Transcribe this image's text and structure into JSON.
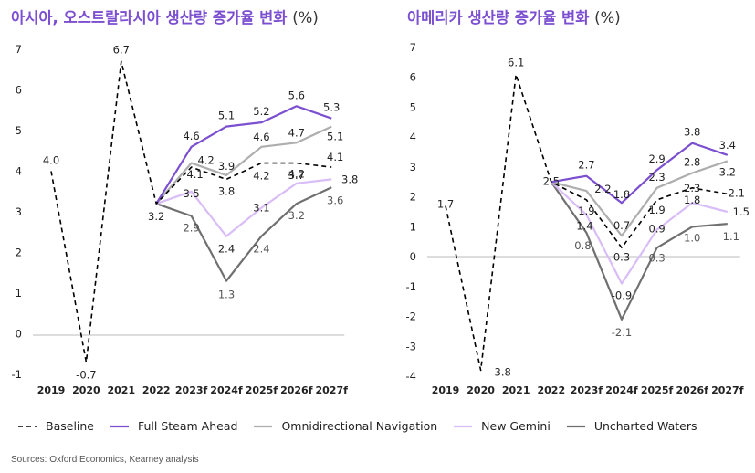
{
  "colors": {
    "Baseline": "#000000",
    "Full Steam Ahead": "#7B4FD0",
    "Omnidirectional Navigation": "#AEAEAE",
    "New Gemini": "#D9BDF7",
    "Uncharted Waters": "#707070"
  },
  "legend": [
    {
      "name": "Baseline",
      "style": "dashed"
    },
    {
      "name": "Full Steam Ahead",
      "style": "solid"
    },
    {
      "name": "Omnidirectional Navigation",
      "style": "solid"
    },
    {
      "name": "New Gemini",
      "style": "solid"
    },
    {
      "name": "Uncharted Waters",
      "style": "solid"
    }
  ],
  "source": "Sources: Oxford Economics, Kearney analysis",
  "chart_data": [
    {
      "type": "line",
      "title": "아시아, 오스트랄라시아 생산량 증가율 변화",
      "title_unit": "(%)",
      "categories": [
        "2019",
        "2020",
        "2021",
        "2022",
        "2023f",
        "2024f",
        "2025f",
        "2026f",
        "2027f"
      ],
      "ylim": [
        -1,
        7
      ],
      "yticks": [
        "-1",
        "0",
        "1",
        "2",
        "3",
        "4",
        "5",
        "6",
        "7"
      ],
      "series": [
        {
          "name": "Baseline",
          "values": [
            4.0,
            -0.7,
            6.7,
            3.2,
            4.1,
            3.8,
            4.2,
            4.2,
            4.1
          ]
        },
        {
          "name": "Full Steam Ahead",
          "values": [
            null,
            null,
            null,
            3.2,
            4.6,
            5.1,
            5.2,
            5.6,
            5.3
          ]
        },
        {
          "name": "Omnidirectional Navigation",
          "values": [
            null,
            null,
            null,
            3.2,
            4.2,
            3.9,
            4.6,
            4.7,
            5.1
          ]
        },
        {
          "name": "New Gemini",
          "values": [
            null,
            null,
            null,
            3.2,
            3.5,
            2.4,
            3.1,
            3.7,
            3.8
          ]
        },
        {
          "name": "Uncharted Waters",
          "values": [
            null,
            null,
            null,
            3.2,
            2.9,
            1.3,
            2.4,
            3.2,
            3.6
          ]
        }
      ],
      "data_labels": [
        {
          "text": "4.0",
          "cat": 0,
          "v": 4.0,
          "dx": 0,
          "dy": -12,
          "color": "#222"
        },
        {
          "text": "-0.7",
          "cat": 1,
          "v": -0.7,
          "dx": 0,
          "dy": 14,
          "color": "#222"
        },
        {
          "text": "6.7",
          "cat": 2,
          "v": 6.7,
          "dx": 0,
          "dy": -13,
          "color": "#222"
        },
        {
          "text": "3.2",
          "cat": 3,
          "v": 3.2,
          "dx": 0,
          "dy": 14,
          "color": "#222"
        },
        {
          "text": "4.6",
          "cat": 4,
          "v": 4.6,
          "dx": 0,
          "dy": -12,
          "color": "#222"
        },
        {
          "text": "4.2",
          "cat": 4,
          "v": 4.2,
          "dx": 16,
          "dy": -3,
          "color": "#222"
        },
        {
          "text": "4.1",
          "cat": 4,
          "v": 4.1,
          "dx": 4,
          "dy": 8,
          "color": "#222"
        },
        {
          "text": "3.5",
          "cat": 4,
          "v": 3.5,
          "dx": 0,
          "dy": 2,
          "color": "#222"
        },
        {
          "text": "2.9",
          "cat": 4,
          "v": 2.9,
          "dx": 0,
          "dy": 13,
          "color": "#555"
        },
        {
          "text": "5.1",
          "cat": 5,
          "v": 5.1,
          "dx": 0,
          "dy": -12,
          "color": "#222"
        },
        {
          "text": "3.9",
          "cat": 5,
          "v": 3.9,
          "dx": 0,
          "dy": -10,
          "color": "#222"
        },
        {
          "text": "3.8",
          "cat": 5,
          "v": 3.8,
          "dx": 0,
          "dy": 13,
          "color": "#222"
        },
        {
          "text": "2.4",
          "cat": 5,
          "v": 2.4,
          "dx": 0,
          "dy": 14,
          "color": "#222"
        },
        {
          "text": "1.3",
          "cat": 5,
          "v": 1.3,
          "dx": 0,
          "dy": 15,
          "color": "#555"
        },
        {
          "text": "5.2",
          "cat": 6,
          "v": 5.2,
          "dx": 0,
          "dy": -12,
          "color": "#222"
        },
        {
          "text": "4.6",
          "cat": 6,
          "v": 4.6,
          "dx": 0,
          "dy": -11,
          "color": "#222"
        },
        {
          "text": "4.2",
          "cat": 6,
          "v": 4.2,
          "dx": 0,
          "dy": 14,
          "color": "#222"
        },
        {
          "text": "3.1",
          "cat": 6,
          "v": 3.1,
          "dx": 0,
          "dy": 0,
          "color": "#222"
        },
        {
          "text": "2.4",
          "cat": 6,
          "v": 2.4,
          "dx": 0,
          "dy": 14,
          "color": "#555"
        },
        {
          "text": "5.6",
          "cat": 7,
          "v": 5.6,
          "dx": 0,
          "dy": -12,
          "color": "#222"
        },
        {
          "text": "4.7",
          "cat": 7,
          "v": 4.7,
          "dx": 0,
          "dy": -11,
          "color": "#222"
        },
        {
          "text": "4.2",
          "cat": 7,
          "v": 4.2,
          "dx": 0,
          "dy": 12,
          "color": "#222"
        },
        {
          "text": "3.7",
          "cat": 7,
          "v": 3.7,
          "dx": 0,
          "dy": -9,
          "color": "#222"
        },
        {
          "text": "3.2",
          "cat": 7,
          "v": 3.2,
          "dx": 0,
          "dy": 13,
          "color": "#555"
        },
        {
          "text": "5.3",
          "cat": 8,
          "v": 5.3,
          "dx": 0,
          "dy": -12,
          "color": "#222"
        },
        {
          "text": "5.1",
          "cat": 8,
          "v": 5.1,
          "dx": 4,
          "dy": 11,
          "color": "#222"
        },
        {
          "text": "4.1",
          "cat": 8,
          "v": 4.1,
          "dx": 4,
          "dy": -11,
          "color": "#222"
        },
        {
          "text": "3.8",
          "cat": 8,
          "v": 3.8,
          "dx": 20,
          "dy": 0,
          "color": "#222"
        },
        {
          "text": "3.6",
          "cat": 8,
          "v": 3.6,
          "dx": 4,
          "dy": 14,
          "color": "#555"
        }
      ]
    },
    {
      "type": "line",
      "title": "아메리카 생산량 증가율 변화",
      "title_unit": "(%)",
      "categories": [
        "2019",
        "2020",
        "2021",
        "2022",
        "2023f",
        "2024f",
        "2025f",
        "2026f",
        "2027f"
      ],
      "ylim": [
        -4,
        7
      ],
      "yticks": [
        "-4",
        "-3",
        "-2",
        "-1",
        "0",
        "1",
        "2",
        "3",
        "4",
        "5",
        "6",
        "7"
      ],
      "series": [
        {
          "name": "Baseline",
          "values": [
            1.7,
            -3.8,
            6.1,
            2.5,
            1.9,
            0.3,
            1.9,
            2.3,
            2.1
          ]
        },
        {
          "name": "Full Steam Ahead",
          "values": [
            null,
            null,
            null,
            2.5,
            2.7,
            1.8,
            2.9,
            3.8,
            3.4
          ]
        },
        {
          "name": "Omnidirectional Navigation",
          "values": [
            null,
            null,
            null,
            2.5,
            2.2,
            0.7,
            2.3,
            2.8,
            3.2
          ]
        },
        {
          "name": "New Gemini",
          "values": [
            null,
            null,
            null,
            2.5,
            1.4,
            -0.9,
            0.9,
            1.8,
            1.5
          ]
        },
        {
          "name": "Uncharted Waters",
          "values": [
            null,
            null,
            null,
            2.5,
            0.8,
            -2.1,
            0.3,
            1.0,
            1.1
          ]
        }
      ],
      "data_labels": [
        {
          "text": "1.7",
          "cat": 0,
          "v": 1.7,
          "dx": 0,
          "dy": -2,
          "color": "#222"
        },
        {
          "text": "-3.8",
          "cat": 1,
          "v": -3.8,
          "dx": 22,
          "dy": 2,
          "color": "#222"
        },
        {
          "text": "6.1",
          "cat": 2,
          "v": 6.1,
          "dx": 0,
          "dy": -13,
          "color": "#222"
        },
        {
          "text": "2.5",
          "cat": 3,
          "v": 2.5,
          "dx": 0,
          "dy": -1,
          "color": "#222"
        },
        {
          "text": "2.7",
          "cat": 4,
          "v": 2.7,
          "dx": 0,
          "dy": -12,
          "color": "#222"
        },
        {
          "text": "2.2",
          "cat": 4,
          "v": 2.2,
          "dx": 18,
          "dy": -2,
          "color": "#222"
        },
        {
          "text": "1.9",
          "cat": 4,
          "v": 1.9,
          "dx": 0,
          "dy": 12,
          "color": "#222"
        },
        {
          "text": "1.4",
          "cat": 4,
          "v": 1.4,
          "dx": -2,
          "dy": 12,
          "color": "#222"
        },
        {
          "text": "0.8",
          "cat": 4,
          "v": 0.8,
          "dx": -4,
          "dy": 14,
          "color": "#555"
        },
        {
          "text": "1.8",
          "cat": 5,
          "v": 1.8,
          "dx": 0,
          "dy": -9,
          "color": "#222"
        },
        {
          "text": "0.7",
          "cat": 5,
          "v": 0.7,
          "dx": 0,
          "dy": -11,
          "color": "#222"
        },
        {
          "text": "0.3",
          "cat": 5,
          "v": 0.3,
          "dx": 0,
          "dy": 10,
          "color": "#222"
        },
        {
          "text": "-0.9",
          "cat": 5,
          "v": -0.9,
          "dx": 0,
          "dy": 13,
          "color": "#222"
        },
        {
          "text": "-2.1",
          "cat": 5,
          "v": -2.1,
          "dx": 0,
          "dy": 14,
          "color": "#555"
        },
        {
          "text": "2.9",
          "cat": 6,
          "v": 2.9,
          "dx": 0,
          "dy": -12,
          "color": "#222"
        },
        {
          "text": "2.3",
          "cat": 6,
          "v": 2.3,
          "dx": 0,
          "dy": -12,
          "color": "#222"
        },
        {
          "text": "1.9",
          "cat": 6,
          "v": 1.9,
          "dx": 0,
          "dy": 11,
          "color": "#222"
        },
        {
          "text": "0.9",
          "cat": 6,
          "v": 0.9,
          "dx": 0,
          "dy": -1,
          "color": "#222"
        },
        {
          "text": "0.3",
          "cat": 6,
          "v": 0.3,
          "dx": 0,
          "dy": 11,
          "color": "#555"
        },
        {
          "text": "3.8",
          "cat": 7,
          "v": 3.8,
          "dx": 0,
          "dy": -12,
          "color": "#222"
        },
        {
          "text": "2.8",
          "cat": 7,
          "v": 2.8,
          "dx": 0,
          "dy": -12,
          "color": "#222"
        },
        {
          "text": "2.3",
          "cat": 7,
          "v": 2.3,
          "dx": 0,
          "dy": 0,
          "color": "#222"
        },
        {
          "text": "1.8",
          "cat": 7,
          "v": 1.8,
          "dx": 0,
          "dy": -3,
          "color": "#222"
        },
        {
          "text": "1.0",
          "cat": 7,
          "v": 1.0,
          "dx": 0,
          "dy": 12,
          "color": "#555"
        },
        {
          "text": "3.4",
          "cat": 8,
          "v": 3.4,
          "dx": 0,
          "dy": -11,
          "color": "#222"
        },
        {
          "text": "3.2",
          "cat": 8,
          "v": 3.2,
          "dx": 0,
          "dy": 12,
          "color": "#222"
        },
        {
          "text": "2.1",
          "cat": 8,
          "v": 2.1,
          "dx": 10,
          "dy": -1,
          "color": "#222"
        },
        {
          "text": "1.5",
          "cat": 8,
          "v": 1.5,
          "dx": 15,
          "dy": 0,
          "color": "#222"
        },
        {
          "text": "1.1",
          "cat": 8,
          "v": 1.1,
          "dx": 4,
          "dy": 14,
          "color": "#555"
        }
      ]
    }
  ]
}
